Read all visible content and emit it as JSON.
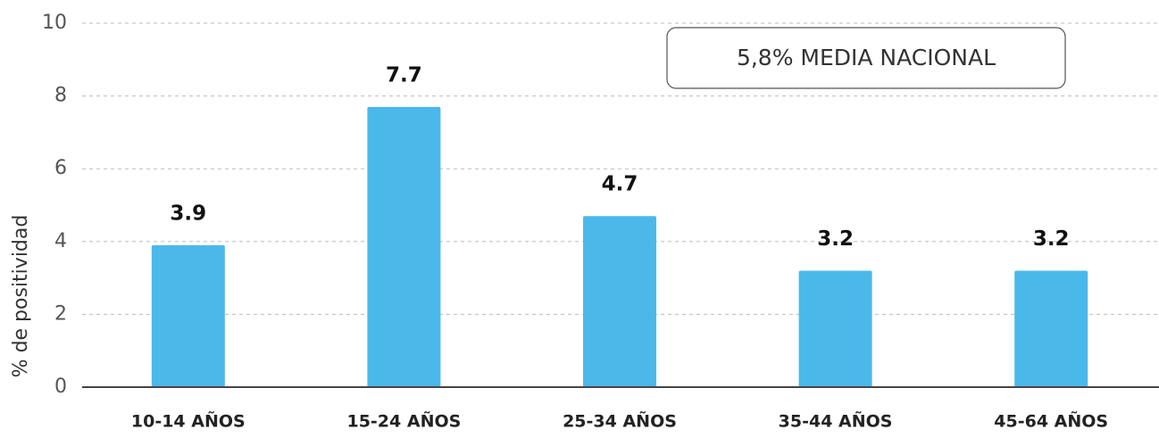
{
  "chart_data": {
    "type": "bar",
    "y_axis_label": "% de positividad",
    "annotation": "5,8% MEDIA NACIONAL",
    "categories": [
      "10-14 AÑOS",
      "15-24 AÑOS",
      "25-34 AÑOS",
      "35-44 AÑOS",
      "45-64 AÑOS"
    ],
    "values": [
      3.9,
      7.7,
      4.7,
      3.2,
      3.2
    ],
    "color": "#4bb8ea",
    "ylim": [
      0,
      10
    ],
    "yticks": [
      0,
      2,
      4,
      6,
      8,
      10
    ],
    "grid": true
  }
}
